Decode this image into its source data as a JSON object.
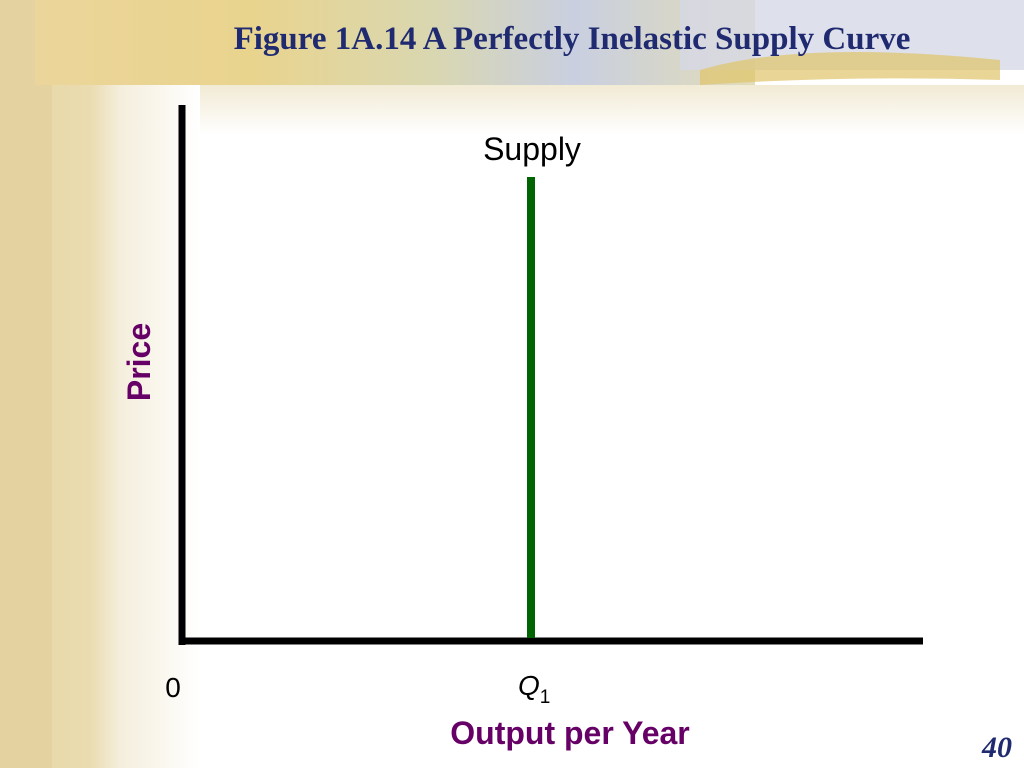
{
  "title": "Figure 1A.14 A Perfectly Inelastic Supply Curve",
  "curve": {
    "label": "Supply"
  },
  "axes": {
    "y_label": "Price",
    "x_label": "Output per Year",
    "origin": "0"
  },
  "marker": {
    "label": "Q",
    "subscript": "1"
  },
  "page_number": "40"
}
